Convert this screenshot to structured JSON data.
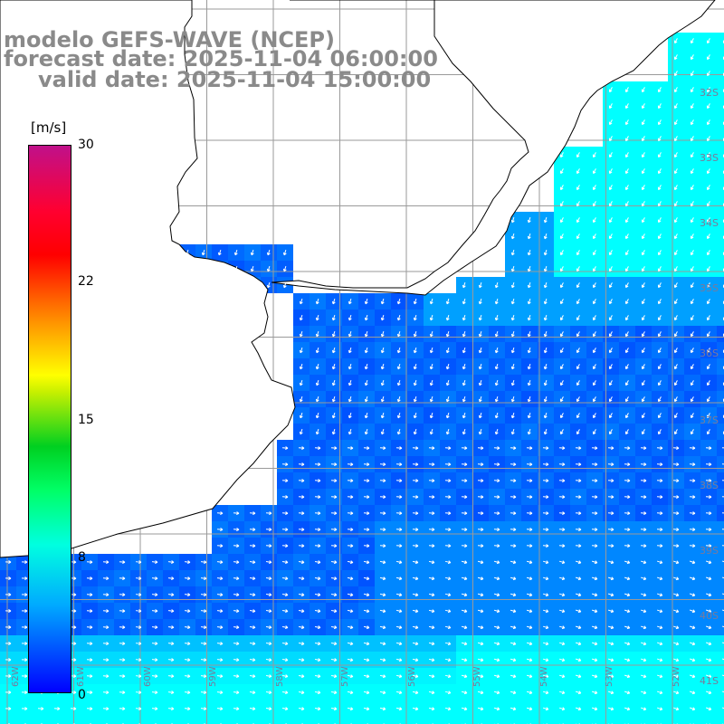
{
  "header": {
    "model": "modelo GEFS-WAVE (NCEP)",
    "forecast": "forecast date: 2025-11-04 06:00:00",
    "valid": "valid date: 2025-11-04 15:00:00"
  },
  "colorbar": {
    "unit": "[m/s]",
    "ticks": [
      "30",
      "22",
      "15",
      "8",
      "0"
    ],
    "colors": [
      "#0000ff",
      "#00aaff",
      "#00ffe0",
      "#00ff66",
      "#ffff00",
      "#ff9000",
      "#ff0000",
      "#c0108a"
    ]
  },
  "map": {
    "field": "wind speed and direction",
    "ocean_color_low": "#0000ff",
    "land_color": "#ffffff",
    "coast_color": "#000000",
    "grid_color": "#999999",
    "lat_labels": [
      "32S",
      "33S",
      "34S",
      "35S",
      "36S",
      "37S",
      "38S",
      "39S",
      "40S",
      "41S"
    ],
    "lon_labels": [
      "62W",
      "61W",
      "60W",
      "59W",
      "58W",
      "57W",
      "56W",
      "55W",
      "54W",
      "53W",
      "52W"
    ]
  }
}
